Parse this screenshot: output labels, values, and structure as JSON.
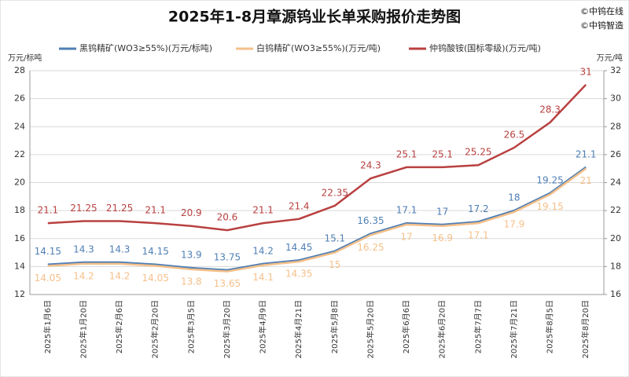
{
  "chart_data": {
    "type": "line",
    "title": "2025年1-8月章源钨业长单采购报价走势图",
    "watermarks": [
      "©中钨在线",
      "©中钨智造"
    ],
    "ylabel": "万元/标吨",
    "y2label": "万元/吨",
    "categories": [
      "2025年1月6日",
      "2025年1月20日",
      "2025年2月6日",
      "2025年2月20日",
      "2025年3月5日",
      "2025年3月20日",
      "2025年4月9日",
      "2025年4月21日",
      "2025年5月8日",
      "2025年5月20日",
      "2025年6月6日",
      "2025年6月20日",
      "2025年7月7日",
      "2025年7月21日",
      "2025年8月5日",
      "2025年8月20日"
    ],
    "series": [
      {
        "name": "黑钨精矿(WO3≥55%)(万元/标吨)",
        "color": "#4f7fb5",
        "label_pos": "above",
        "values": [
          14.15,
          14.3,
          14.3,
          14.15,
          13.9,
          13.75,
          14.2,
          14.45,
          15.1,
          16.35,
          17.1,
          17,
          17.2,
          18,
          19.25,
          21.1
        ]
      },
      {
        "name": "白钨精矿(WO3≥55%)(万元/吨)",
        "color": "#f5c08a",
        "label_pos": "below",
        "values": [
          14.05,
          14.2,
          14.2,
          14.05,
          13.8,
          13.65,
          14.1,
          14.35,
          15,
          16.25,
          17,
          16.9,
          17.1,
          17.9,
          19.15,
          21
        ]
      },
      {
        "name": "仲钨酸铵(国标零级)(万元/吨)",
        "color": "#b94040",
        "label_pos": "above",
        "axis": "y2",
        "values": [
          21.1,
          21.25,
          21.25,
          21.1,
          20.9,
          20.6,
          21.1,
          21.4,
          22.35,
          24.3,
          25.1,
          25.1,
          25.25,
          26.5,
          28.3,
          31
        ]
      }
    ],
    "ylim": [
      12,
      28
    ],
    "yticks": [
      12,
      14,
      16,
      18,
      20,
      22,
      24,
      26,
      28
    ],
    "y2lim": [
      16,
      32
    ],
    "y2ticks": [
      16,
      18,
      20,
      22,
      24,
      26,
      28,
      30,
      32
    ],
    "grid": true
  }
}
